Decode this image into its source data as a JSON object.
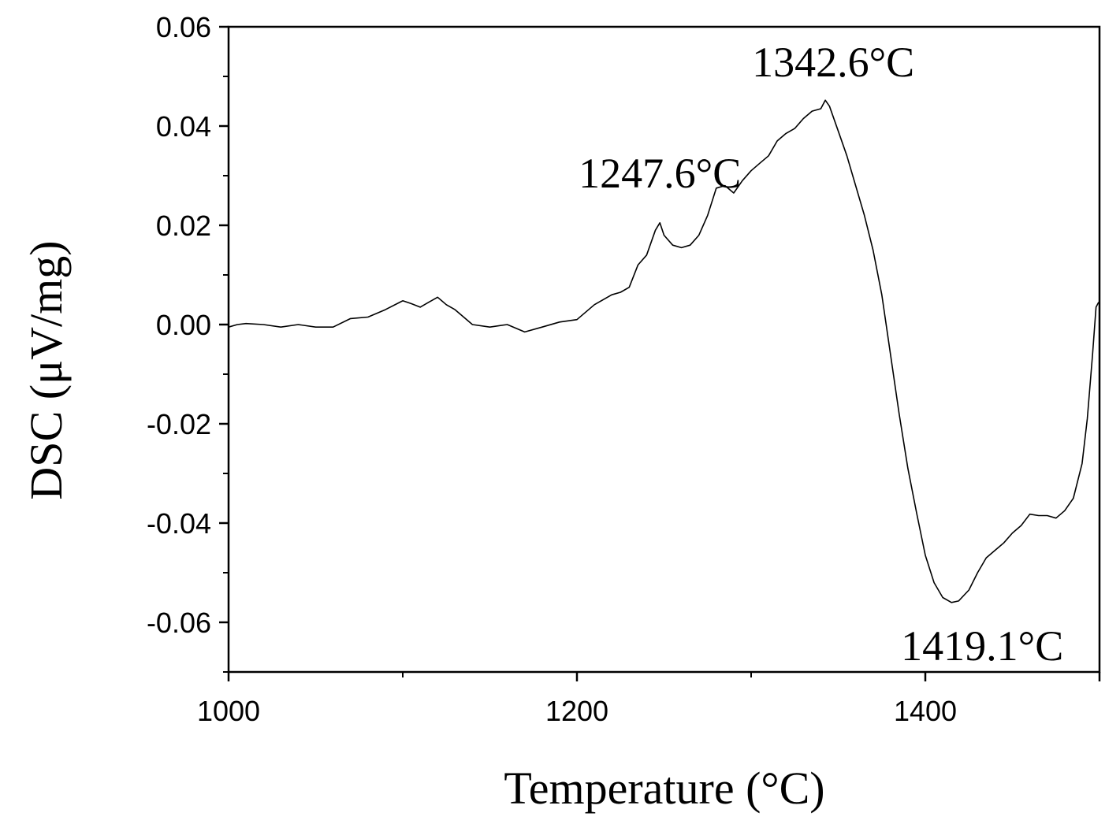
{
  "chart_data": {
    "type": "line",
    "title": "",
    "xlabel": "Temperature (°C)",
    "ylabel": "DSC (μV/mg)",
    "xlim": [
      1000,
      1500
    ],
    "ylim": [
      -0.07,
      0.06
    ],
    "x_ticks": [
      1000,
      1200,
      1400
    ],
    "x_tick_labels": [
      "1000",
      "1200",
      "1400"
    ],
    "y_ticks": [
      -0.06,
      -0.04,
      -0.02,
      0.0,
      0.02,
      0.04,
      0.06
    ],
    "y_tick_labels": [
      "-0.06",
      "-0.04",
      "-0.02",
      "0.00",
      "0.02",
      "0.04",
      "0.06"
    ],
    "grid": false,
    "legend": "none",
    "line_color": "#000000",
    "series": [
      {
        "x": [
          1000,
          1005,
          1010,
          1020,
          1030,
          1040,
          1050,
          1060,
          1070,
          1080,
          1090,
          1100,
          1105,
          1110,
          1115,
          1120,
          1125,
          1130,
          1140,
          1150,
          1160,
          1170,
          1180,
          1190,
          1200,
          1210,
          1220,
          1225,
          1230,
          1235,
          1240,
          1245,
          1247.6,
          1250,
          1255,
          1260,
          1265,
          1270,
          1275,
          1280,
          1285,
          1290,
          1295,
          1300,
          1305,
          1310,
          1315,
          1320,
          1325,
          1330,
          1335,
          1340,
          1342.6,
          1345,
          1350,
          1355,
          1360,
          1365,
          1370,
          1375,
          1380,
          1385,
          1390,
          1395,
          1400,
          1405,
          1410,
          1415,
          1419.1,
          1425,
          1430,
          1435,
          1440,
          1445,
          1450,
          1455,
          1460,
          1465,
          1470,
          1475,
          1480,
          1485,
          1490,
          1493,
          1496,
          1498,
          1499.5
        ],
        "y": [
          -0.0005,
          0.0,
          0.0002,
          0.0,
          -0.0005,
          0.0,
          -0.0005,
          -0.0005,
          0.0012,
          0.0015,
          0.003,
          0.0048,
          0.0042,
          0.0035,
          0.0045,
          0.0055,
          0.004,
          0.003,
          0.0,
          -0.0005,
          0.0,
          -0.0015,
          -0.0005,
          0.0005,
          0.001,
          0.004,
          0.006,
          0.0065,
          0.0075,
          0.012,
          0.014,
          0.019,
          0.0205,
          0.018,
          0.016,
          0.0155,
          0.016,
          0.018,
          0.022,
          0.0275,
          0.028,
          0.0265,
          0.029,
          0.031,
          0.0325,
          0.034,
          0.037,
          0.0385,
          0.0395,
          0.0415,
          0.043,
          0.0435,
          0.0452,
          0.044,
          0.039,
          0.034,
          0.028,
          0.022,
          0.015,
          0.006,
          -0.006,
          -0.018,
          -0.029,
          -0.038,
          -0.0465,
          -0.052,
          -0.055,
          -0.056,
          -0.0557,
          -0.0535,
          -0.05,
          -0.047,
          -0.0455,
          -0.044,
          -0.042,
          -0.0405,
          -0.0382,
          -0.0385,
          -0.0385,
          -0.039,
          -0.0375,
          -0.035,
          -0.028,
          -0.019,
          -0.006,
          0.0035,
          0.0045
        ]
      }
    ],
    "annotations": [
      {
        "text": "1247.6°C",
        "x": 1247.6,
        "y": 0.0205
      },
      {
        "text": "1342.6°C",
        "x": 1342.6,
        "y": 0.0452
      },
      {
        "text": "1419.1°C",
        "x": 1419.1,
        "y": -0.0557
      }
    ]
  }
}
